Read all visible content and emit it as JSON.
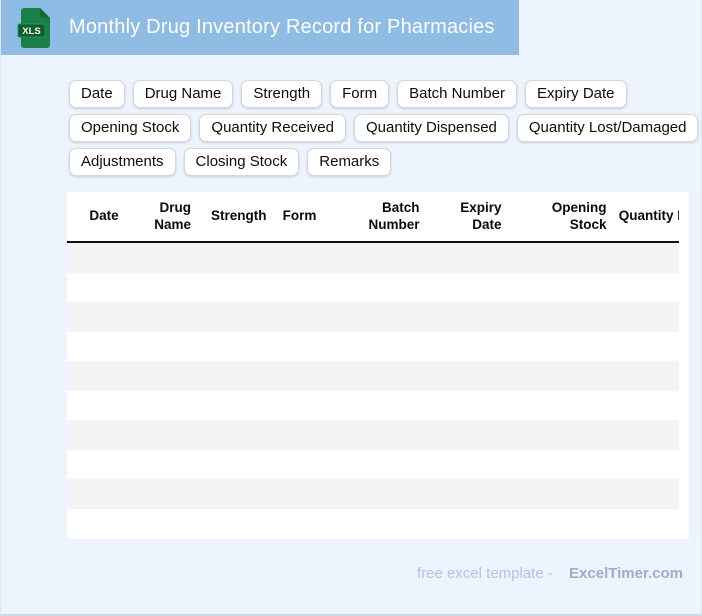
{
  "header": {
    "title": "Monthly Drug Inventory Record for Pharmacies",
    "icon_label": "XLS"
  },
  "chips": [
    "Date",
    "Drug Name",
    "Strength",
    "Form",
    "Batch Number",
    "Expiry Date",
    "Opening Stock",
    "Quantity Received",
    "Quantity Dispensed",
    "Quantity Lost/Damaged",
    "Adjustments",
    "Closing Stock",
    "Remarks"
  ],
  "table": {
    "columns": [
      "Date",
      "Drug Name",
      "Strength",
      "Form",
      "Batch Number",
      "Expiry Date",
      "Opening Stock",
      "Quantity Received",
      "Quantity Dispensed",
      "Quantity Lost/Damaged",
      "Adjustments",
      "Closing Stock",
      "Remarks"
    ],
    "row_count": 10,
    "rows": []
  },
  "footer": {
    "prefix": "free excel template -",
    "brand": "ExcelTimer.com"
  },
  "colors": {
    "titlebar": "#8fbce5",
    "background": "#edf4fd",
    "stripe": "#f4f3f5",
    "icon_green": "#1b8047",
    "icon_band": "#0b5e2f"
  }
}
